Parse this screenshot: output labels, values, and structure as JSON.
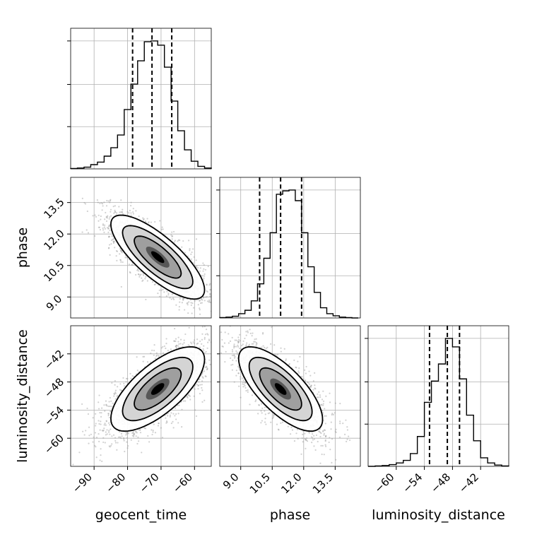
{
  "chart_data": {
    "type": "corner",
    "parameters": [
      "geocent_time",
      "phase",
      "luminosity_distance"
    ],
    "axis_labels": {
      "bottom": [
        "geocent_time",
        "phase",
        "luminosity_distance"
      ],
      "left": [
        "phase",
        "luminosity_distance"
      ]
    },
    "grid": true,
    "ranges": {
      "geocent_time": [
        -97,
        -55
      ],
      "phase": [
        8.0,
        14.7
      ],
      "luminosity_distance": [
        -66,
        -36
      ]
    },
    "ticks": {
      "geocent_time": {
        "values": [
          -90,
          -80,
          -70,
          -60
        ],
        "labels": [
          "−90",
          "−80",
          "−70",
          "−60"
        ]
      },
      "phase": {
        "values": [
          9.0,
          10.5,
          12.0,
          13.5
        ],
        "labels": [
          "9.0",
          "10.5",
          "12.0",
          "13.5"
        ]
      },
      "luminosity_distance": {
        "values": [
          -60,
          -54,
          -48,
          -42
        ],
        "labels": [
          "−60",
          "−54",
          "−48",
          "−42"
        ]
      }
    },
    "marginals": {
      "geocent_time": {
        "bin_edges": [
          -97,
          -95,
          -93,
          -91,
          -89,
          -87,
          -85,
          -83,
          -81,
          -79,
          -77,
          -75,
          -73,
          -71,
          -69,
          -67,
          -65,
          -63,
          -61,
          -59,
          -57,
          -55
        ],
        "counts": [
          1,
          2,
          4,
          10,
          16,
          30,
          50,
          80,
          140,
          200,
          255,
          300,
          302,
          292,
          240,
          160,
          90,
          45,
          18,
          6,
          2
        ],
        "quantiles": [
          -78.5,
          -72.7,
          -66.8
        ]
      },
      "phase": {
        "bin_edges": [
          8.0,
          8.3,
          8.6,
          8.9,
          9.2,
          9.5,
          9.8,
          10.1,
          10.4,
          10.7,
          11.0,
          11.3,
          11.6,
          11.9,
          12.2,
          12.5,
          12.8,
          13.1,
          13.4,
          13.7,
          14.0,
          14.3,
          14.6
        ],
        "counts": [
          1,
          2,
          4,
          10,
          18,
          40,
          80,
          140,
          200,
          290,
          298,
          300,
          275,
          200,
          120,
          60,
          24,
          10,
          5,
          2,
          1,
          0
        ],
        "quantiles": [
          9.9,
          10.9,
          11.9
        ]
      },
      "luminosity_distance": {
        "bin_edges": [
          -66,
          -64.5,
          -63,
          -61.5,
          -60,
          -58.5,
          -57,
          -55.5,
          -54,
          -52.5,
          -51,
          -49.5,
          -48,
          -46.5,
          -45,
          -43.5,
          -42,
          -40.5,
          -39,
          -37.5,
          -36
        ],
        "counts": [
          0,
          1,
          2,
          4,
          8,
          14,
          30,
          70,
          150,
          200,
          240,
          300,
          280,
          205,
          120,
          60,
          20,
          8,
          3,
          1
        ],
        "quantiles": [
          -52.9,
          -49.1,
          -46.5
        ]
      }
    },
    "joint": [
      {
        "x": "geocent_time",
        "y": "phase",
        "center": [
          -71,
          10.9
        ],
        "sigma": [
          7,
          1.0
        ],
        "correlation": -0.78
      },
      {
        "x": "geocent_time",
        "y": "luminosity_distance",
        "center": [
          -71,
          -49.5
        ],
        "sigma": [
          7,
          4.5
        ],
        "correlation": 0.7
      },
      {
        "x": "phase",
        "y": "luminosity_distance",
        "center": [
          10.9,
          -49.5
        ],
        "sigma": [
          1.0,
          4.5
        ],
        "correlation": -0.72
      }
    ],
    "contour_levels_sigma": [
      0.5,
      1.0,
      1.5,
      2.0
    ]
  }
}
